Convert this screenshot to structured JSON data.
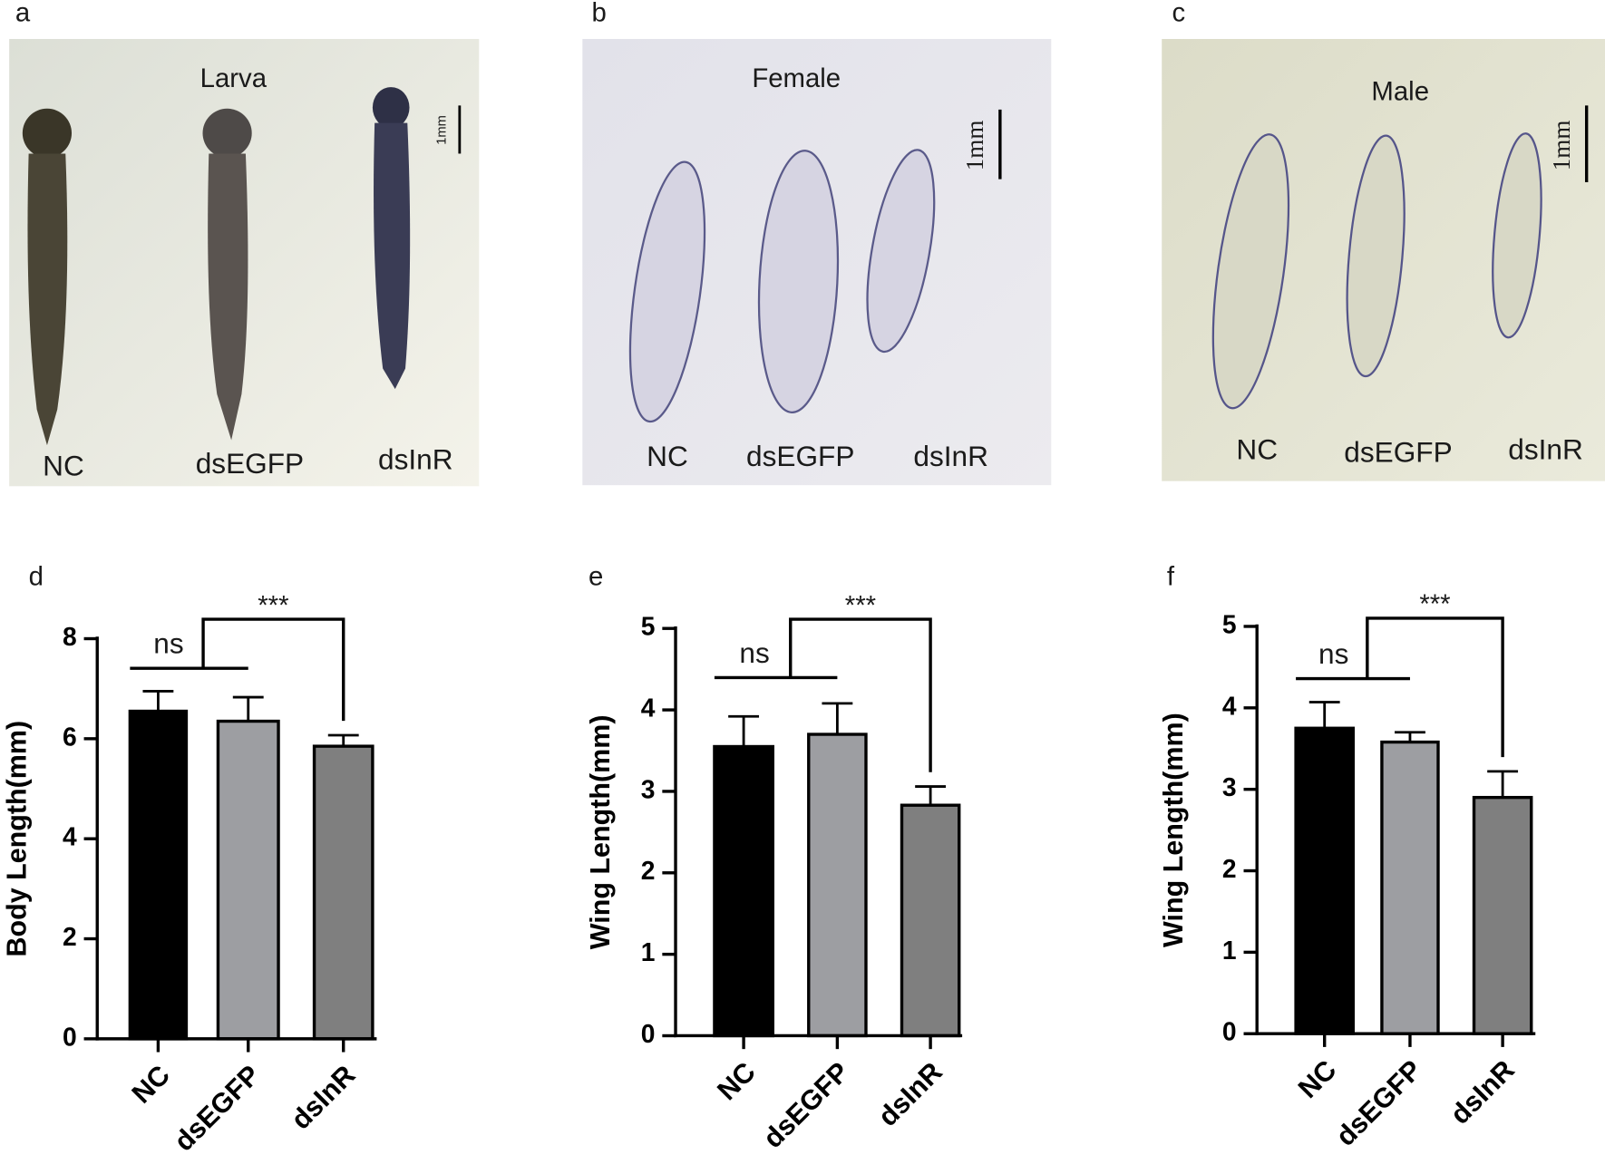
{
  "photo_panels": [
    {
      "letter": "a",
      "title": "Larva",
      "labels": [
        "NC",
        "dsEGFP",
        "dsInR"
      ],
      "scale": "1mm"
    },
    {
      "letter": "b",
      "title": "Female",
      "labels": [
        "NC",
        "dsEGFP",
        "dsInR"
      ],
      "scale": "1mm"
    },
    {
      "letter": "c",
      "title": "Male",
      "labels": [
        "NC",
        "dsEGFP",
        "dsInR"
      ],
      "scale": "1mm"
    }
  ],
  "chart_data": [
    {
      "type": "bar",
      "letter": "d",
      "y_label": "Body Length(mm)",
      "categories": [
        "NC",
        "dsEGFP",
        "dsInR"
      ],
      "values": [
        6.55,
        6.35,
        5.85
      ],
      "errors": [
        0.4,
        0.48,
        0.22
      ],
      "colors": [
        "#000000",
        "#9d9ea2",
        "#7f7f7f"
      ],
      "ylim": [
        0,
        8
      ],
      "yticks": [
        0,
        2,
        4,
        6,
        8
      ],
      "annotations": [
        "ns",
        "***"
      ]
    },
    {
      "type": "bar",
      "letter": "e",
      "y_label": "Wing Length(mm)",
      "categories": [
        "NC",
        "dsEGFP",
        "dsInR"
      ],
      "values": [
        3.55,
        3.7,
        2.83
      ],
      "errors": [
        0.37,
        0.38,
        0.23
      ],
      "colors": [
        "#000000",
        "#9d9ea2",
        "#7f7f7f"
      ],
      "ylim": [
        0,
        5
      ],
      "yticks": [
        0,
        1,
        2,
        3,
        4,
        5
      ],
      "annotations": [
        "ns",
        "***"
      ]
    },
    {
      "type": "bar",
      "letter": "f",
      "y_label": "Wing Length(mm)",
      "categories": [
        "NC",
        "dsEGFP",
        "dsInR"
      ],
      "values": [
        3.75,
        3.58,
        2.9
      ],
      "errors": [
        0.32,
        0.12,
        0.32
      ],
      "colors": [
        "#000000",
        "#9d9ea2",
        "#7f7f7f"
      ],
      "ylim": [
        0,
        5
      ],
      "yticks": [
        0,
        1,
        2,
        3,
        4,
        5
      ],
      "annotations": [
        "ns",
        "***"
      ]
    }
  ]
}
